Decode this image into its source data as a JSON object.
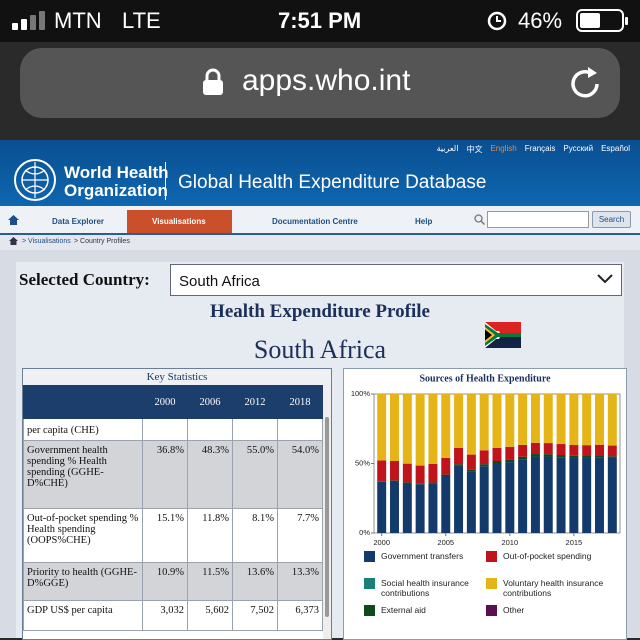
{
  "status_bar": {
    "carrier": "MTN",
    "network": "LTE",
    "time": "7:51 PM",
    "battery": "46%"
  },
  "address_bar": {
    "url": "apps.who.int"
  },
  "header": {
    "languages": [
      "العربية",
      "中文",
      "English",
      "Français",
      "Русский",
      "Español"
    ],
    "org_line1": "World Health",
    "org_line2": "Organization",
    "title": "Global Health Expenditure Database"
  },
  "nav": {
    "items": [
      "Data Explorer",
      "Visualisations",
      "Documentation Centre",
      "Help"
    ],
    "search_button": "Search"
  },
  "breadcrumb": [
    "> Visualisations",
    "> Country Profiles"
  ],
  "selector": {
    "label": "Selected Country:",
    "value": "South Africa"
  },
  "profile": {
    "title": "Health Expenditure Profile",
    "country": "South Africa"
  },
  "table": {
    "title": "Key Statistics",
    "columns": [
      "2000",
      "2006",
      "2012",
      "2018"
    ],
    "rows": [
      {
        "label": "per capita (CHE)"
      },
      {
        "label": "Government health spending % Health spending (GGHE-D%CHE)",
        "values": [
          "36.8%",
          "48.3%",
          "55.0%",
          "54.0%"
        ]
      },
      {
        "label": "Out-of-pocket spending % Health spending (OOPS%CHE)",
        "values": [
          "15.1%",
          "11.8%",
          "8.1%",
          "7.7%"
        ]
      },
      {
        "label": "Priority to health (GGHE-D%GGE)",
        "values": [
          "10.9%",
          "11.5%",
          "13.6%",
          "13.3%"
        ]
      },
      {
        "label": "GDP US$ per capita",
        "values": [
          "3,032",
          "5,602",
          "7,502",
          "6,373"
        ]
      }
    ]
  },
  "chart_data": {
    "type": "stacked_bar",
    "title": "Sources of Health Expenditure",
    "x": [
      2000,
      2001,
      2002,
      2003,
      2004,
      2005,
      2006,
      2007,
      2008,
      2009,
      2010,
      2011,
      2012,
      2013,
      2014,
      2015,
      2016,
      2017,
      2018
    ],
    "xlim": [
      1999.4,
      2018.6
    ],
    "xticks": [
      2000,
      2005,
      2010,
      2015
    ],
    "ylim": [
      0,
      100
    ],
    "yticks": [
      {
        "value": 0,
        "label": "0%"
      },
      {
        "value": 50,
        "label": "50%"
      },
      {
        "value": 100,
        "label": "100%"
      }
    ],
    "series": [
      {
        "name": "Government transfers",
        "color": "#143a6b",
        "values": [
          36.8,
          37.5,
          36.0,
          35.0,
          35.5,
          41.0,
          48.3,
          44.0,
          48.0,
          50.0,
          51.0,
          53.0,
          55.0,
          55.0,
          54.5,
          54.0,
          54.0,
          54.5,
          54.0
        ]
      },
      {
        "name": "Social health insurance contributions",
        "color": "#1a7f74",
        "values": [
          0,
          0,
          0,
          0,
          0,
          0,
          0,
          0,
          0,
          0,
          0,
          0,
          0,
          0,
          0,
          0,
          0,
          0,
          0
        ]
      },
      {
        "name": "External aid",
        "color": "#0c4a1a",
        "values": [
          0.3,
          0.3,
          0.4,
          0.5,
          0.8,
          1.0,
          1.2,
          1.4,
          1.5,
          1.8,
          2.0,
          1.9,
          1.8,
          1.7,
          1.6,
          1.5,
          1.4,
          1.3,
          1.2
        ]
      },
      {
        "name": "Out-of-pocket spending",
        "color": "#c0141c",
        "values": [
          15.1,
          14.0,
          13.5,
          13.0,
          13.5,
          12.0,
          11.8,
          11.0,
          10.0,
          9.5,
          9.0,
          8.5,
          8.1,
          8.0,
          7.9,
          7.8,
          7.8,
          7.7,
          7.7
        ]
      },
      {
        "name": "Voluntary health insurance contributions",
        "color": "#e5b417",
        "values": [
          47.8,
          48.2,
          50.1,
          51.5,
          50.2,
          46.0,
          38.7,
          43.6,
          40.5,
          38.7,
          38.0,
          36.6,
          35.1,
          35.3,
          36.0,
          36.7,
          36.8,
          36.5,
          37.1
        ]
      },
      {
        "name": "Other",
        "color": "#5a1050",
        "values": [
          0,
          0,
          0,
          0,
          0,
          0,
          0,
          0,
          0,
          0,
          0,
          0,
          0,
          0,
          0,
          0,
          0,
          0,
          0
        ]
      }
    ]
  }
}
